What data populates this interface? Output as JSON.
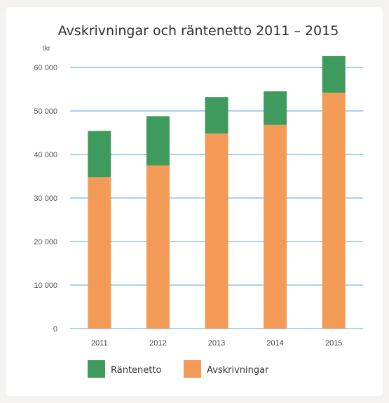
{
  "chart_data": {
    "type": "bar",
    "stacked": true,
    "title": "Avskrivningar och räntenetto 2011 – 2015",
    "unit_label": "tkr",
    "categories": [
      "2011",
      "2012",
      "2013",
      "2014",
      "2015"
    ],
    "series": [
      {
        "name": "Avskrivningar",
        "color": "#f29a56",
        "values": [
          34800,
          37500,
          44800,
          46800,
          54200
        ]
      },
      {
        "name": "Räntenetto",
        "color": "#3f9a5e",
        "values": [
          10600,
          11300,
          8400,
          7700,
          8400
        ]
      }
    ],
    "ylim": [
      0,
      60000
    ],
    "yticks": [
      "0",
      "10 000",
      "20 000",
      "30 000",
      "40 000",
      "50 000",
      "60 000"
    ],
    "ytick_values": [
      0,
      10000,
      20000,
      30000,
      40000,
      50000,
      60000
    ],
    "grid": true,
    "legend": {
      "position": "bottom",
      "items": [
        {
          "label": "Räntenetto",
          "color": "#3f9a5e"
        },
        {
          "label": "Avskrivningar",
          "color": "#f29a56"
        }
      ]
    }
  }
}
